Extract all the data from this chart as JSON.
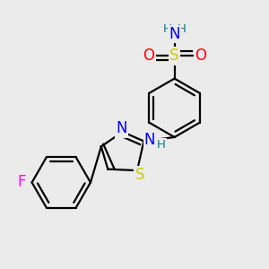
{
  "background_color": "#ebebeb",
  "atom_colors": {
    "C": "#000000",
    "N": "#0000ff",
    "O": "#ff0000",
    "S_sulfa": "#cccc00",
    "S_thiazole": "#cccc00",
    "F": "#ff00ff",
    "H": "#008080"
  },
  "bond_color": "#000000",
  "bond_width": 1.6,
  "font_size_atoms": 12,
  "font_size_small": 9.5
}
